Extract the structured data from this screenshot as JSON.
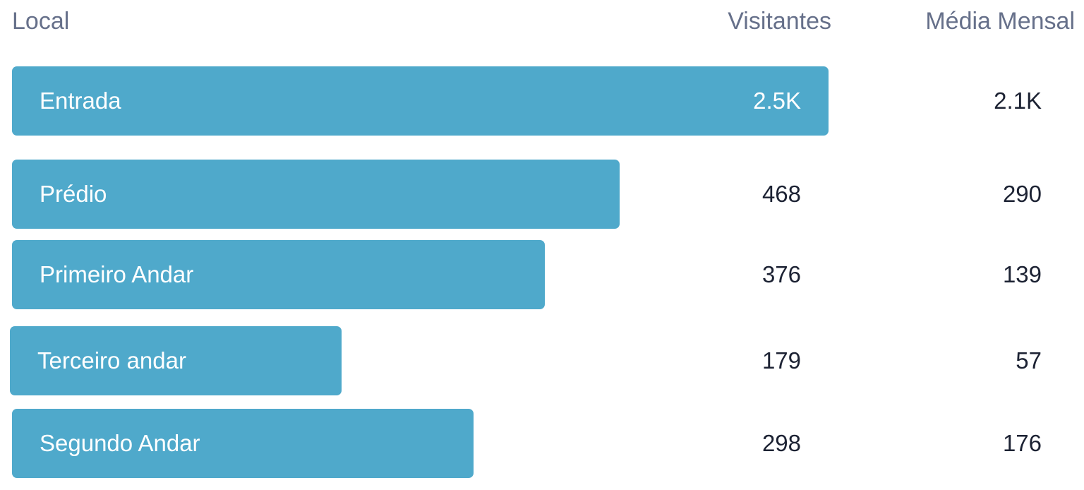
{
  "headers": {
    "location": "Local",
    "visitors": "Visitantes",
    "monthly_average": "Média Mensal"
  },
  "colors": {
    "bar": "#4fa9cb",
    "header_text": "#66708a",
    "value_text": "#1c2233"
  },
  "rows": [
    {
      "label": "Entrada",
      "visitors_label": "2.5K",
      "average_label": "2.1K"
    },
    {
      "label": "Prédio",
      "visitors_label": "468",
      "average_label": "290"
    },
    {
      "label": "Primeiro Andar",
      "visitors_label": "376",
      "average_label": "139"
    },
    {
      "label": "Terceiro andar",
      "visitors_label": "179",
      "average_label": "57"
    },
    {
      "label": "Segundo Andar",
      "visitors_label": "298",
      "average_label": "176"
    }
  ],
  "chart_data": {
    "type": "bar",
    "orientation": "horizontal",
    "categories": [
      "Entrada",
      "Prédio",
      "Primeiro Andar",
      "Terceiro andar",
      "Segundo Andar"
    ],
    "series": [
      {
        "name": "Visitantes",
        "values": [
          2500,
          468,
          376,
          179,
          298
        ]
      },
      {
        "name": "Média Mensal",
        "values": [
          2100,
          290,
          139,
          57,
          176
        ]
      }
    ],
    "bar_series": "Visitantes"
  }
}
